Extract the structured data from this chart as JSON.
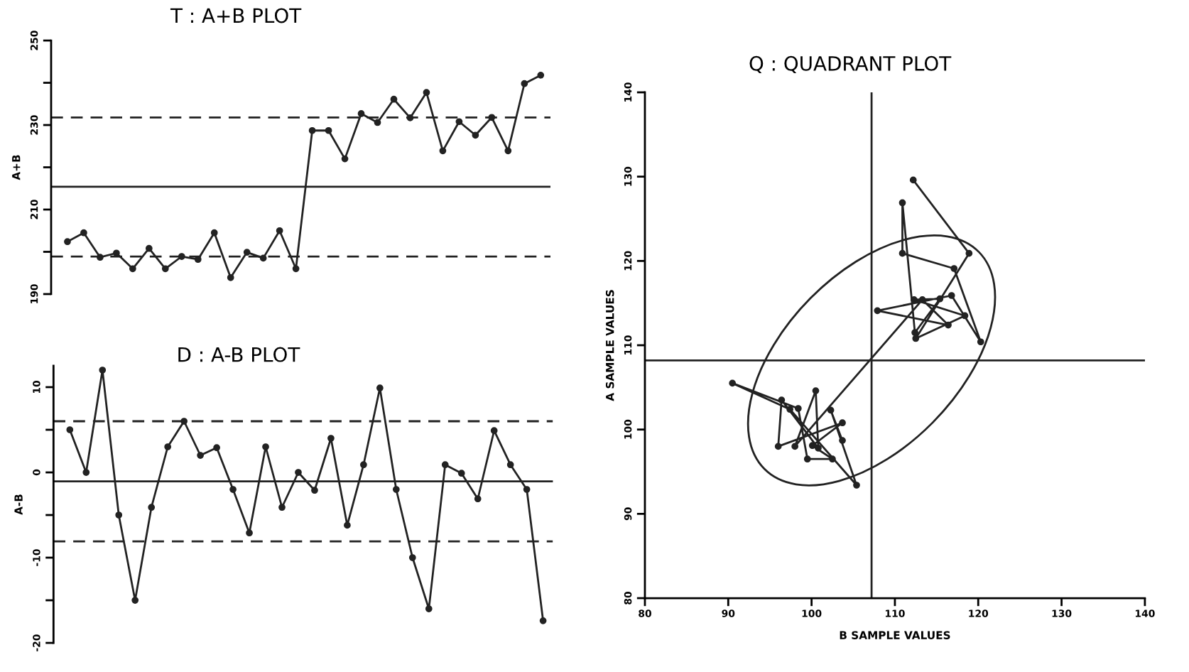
{
  "chart_data": [
    {
      "type": "line",
      "title": "T : A+B PLOT",
      "ylabel": "A+B",
      "tick_labels": "y",
      "marker": "circle",
      "grid": false,
      "categories": [
        null,
        null,
        null,
        null,
        null,
        null,
        null,
        null,
        null,
        null,
        null,
        null,
        null,
        null,
        null,
        null,
        null,
        null,
        null,
        null,
        null,
        null,
        null,
        null,
        null,
        null,
        null,
        null,
        null,
        null
      ],
      "series": [
        {
          "color": "#222222",
          "values": [
            202.4,
            204.5,
            198.7,
            199.7,
            196.0,
            200.8,
            196.0,
            198.9,
            198.2,
            204.5,
            193.9,
            199.9,
            198.5,
            205.0,
            196.0,
            228.7,
            228.7,
            222.0,
            232.7,
            230.6,
            236.1,
            231.7,
            237.7,
            223.9,
            230.8,
            227.6,
            231.8,
            223.9,
            239.8,
            241.8
          ]
        }
      ],
      "ylim": [
        190,
        250
      ],
      "yticks": [
        190,
        {
          "value": 200,
          "label": null
        },
        210,
        {
          "value": 220,
          "label": null
        },
        230,
        {
          "value": 240,
          "label": null
        },
        250
      ],
      "ref_lines": [
        {
          "axis": "y",
          "value": 231.8,
          "line_style": "dashed",
          "color": "#222222"
        },
        {
          "axis": "y",
          "value": 215.4,
          "line_style": "solid",
          "color": "#222222"
        },
        {
          "axis": "y",
          "value": 198.9,
          "line_style": "dashed",
          "color": "#222222"
        }
      ]
    },
    {
      "type": "line",
      "title": "D : A-B PLOT",
      "ylabel": "A-B",
      "tick_labels": "y",
      "marker": "circle",
      "grid": false,
      "categories": [
        null,
        null,
        null,
        null,
        null,
        null,
        null,
        null,
        null,
        null,
        null,
        null,
        null,
        null,
        null,
        null,
        null,
        null,
        null,
        null,
        null,
        null,
        null,
        null,
        null,
        null,
        null,
        null,
        null,
        null
      ],
      "series": [
        {
          "color": "#222222",
          "values": [
            5.0,
            0,
            12.0,
            -5.0,
            -15.0,
            -4.1,
            3.0,
            6.0,
            2.0,
            2.9,
            -2.0,
            -7.1,
            3.0,
            -4.1,
            0,
            -2.1,
            4.0,
            -6.2,
            0.9,
            9.9,
            -2.0,
            -10.0,
            -16.0,
            0.9,
            -0.1,
            -3.1,
            4.9,
            0.9,
            -2.0,
            -17.4
          ]
        }
      ],
      "ylim": [
        -20,
        12.5
      ],
      "yticks": [
        -20,
        {
          "value": -15,
          "label": null
        },
        -10,
        {
          "value": -5,
          "label": null
        },
        0,
        {
          "value": 5,
          "label": null
        },
        10
      ],
      "ref_lines": [
        {
          "axis": "y",
          "value": 6.0,
          "line_style": "dashed",
          "color": "#222222"
        },
        {
          "axis": "y",
          "value": -1.05,
          "line_style": "solid",
          "color": "#222222"
        },
        {
          "axis": "y",
          "value": -8.1,
          "line_style": "dashed",
          "color": "#222222"
        }
      ]
    },
    {
      "type": "line",
      "title": "Q : QUADRANT PLOT",
      "xlabel": "B SAMPLE VALUES",
      "ylabel": "A SAMPLE VALUES",
      "marker": "circle",
      "grid": false,
      "series": [
        {
          "color": "#222222",
          "x": [
            103.7,
            102.3,
            105.4,
            97.4,
            90.5,
            98.4,
            99.5,
            102.5,
            100.1,
            103.7,
            96.0,
            96.4,
            100.8,
            100.5,
            98.0,
            113.3,
            116.4,
            107.9,
            116.8,
            120.3,
            117.1,
            110.9,
            110.9,
            112.4,
            115.4,
            112.3,
            118.4,
            112.5,
            118.9,
            112.2
          ],
          "values": [
            98.7,
            102.3,
            93.4,
            102.4,
            105.5,
            102.5,
            96.5,
            96.5,
            98.1,
            100.8,
            98.0,
            103.5,
            97.8,
            104.6,
            98.0,
            115.4,
            112.4,
            114.1,
            115.9,
            110.4,
            119.1,
            120.9,
            126.9,
            111.5,
            115.5,
            115.4,
            113.5,
            110.8,
            120.9,
            129.6
          ]
        }
      ],
      "xlim": [
        80,
        140
      ],
      "xticks": [
        80,
        90,
        100,
        110,
        120,
        130,
        140
      ],
      "ylim": [
        80,
        140
      ],
      "yticks": [
        80,
        90,
        100,
        110,
        120,
        130,
        140
      ],
      "ref_lines": [
        {
          "axis": "x",
          "value": 107.2,
          "line_style": "solid",
          "color": "#222222"
        },
        {
          "axis": "y",
          "value": 108.2,
          "line_style": "solid",
          "color": "#222222"
        }
      ]
    }
  ]
}
